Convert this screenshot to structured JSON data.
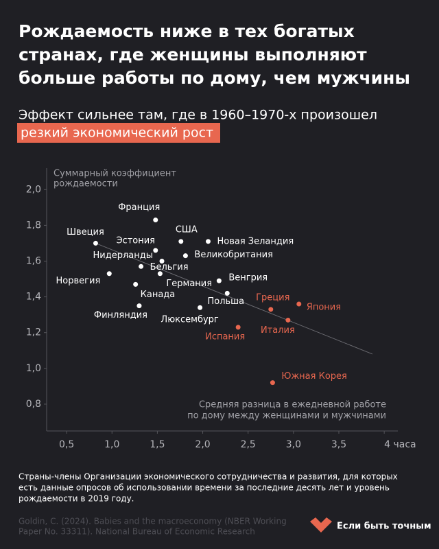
{
  "chart_data": {
    "type": "scatter",
    "title": [
      "Рождаемость ниже в тех богатых",
      "странах, где женщины выполняют",
      "больше работы по дому, чем мужчины"
    ],
    "subtitle": "Эффект сильнее там, где в 1960–1970-х произошел",
    "subtitle_highlight": "резкий экономический рост",
    "y_axis_label": [
      "Суммарный коэффициент",
      "рождаемости"
    ],
    "x_axis_label": [
      "Средняя разница в ежедневной работе",
      "по дому между женщинами и мужчинами"
    ],
    "labels": [
      "Франция",
      "Швеция",
      "Эстония",
      "США",
      "Новая Зеландия",
      "Нидерланды",
      "Великобритания",
      "Бельгия",
      "Норвегия",
      "Германия",
      "Канада",
      "Венгрия",
      "Польша",
      "Финляндия",
      "Люксембург",
      "Греция",
      "Япония",
      "Испания",
      "Италия",
      "Южная Корея"
    ],
    "x": [
      1.48,
      0.82,
      1.48,
      1.76,
      2.06,
      1.55,
      1.81,
      1.32,
      0.97,
      1.53,
      1.26,
      2.18,
      2.27,
      1.3,
      1.97,
      2.75,
      3.06,
      2.39,
      2.94,
      2.77
    ],
    "y": [
      1.83,
      1.7,
      1.66,
      1.71,
      1.71,
      1.6,
      1.63,
      1.57,
      1.53,
      1.53,
      1.47,
      1.49,
      1.42,
      1.35,
      1.34,
      1.33,
      1.36,
      1.23,
      1.27,
      0.92
    ],
    "colors": [
      "#ffffff",
      "#ffffff",
      "#ffffff",
      "#ffffff",
      "#ffffff",
      "#ffffff",
      "#ffffff",
      "#ffffff",
      "#ffffff",
      "#ffffff",
      "#ffffff",
      "#ffffff",
      "#ffffff",
      "#ffffff",
      "#ffffff",
      "#e8674f",
      "#e8674f",
      "#e8674f",
      "#e8674f",
      "#e8674f"
    ],
    "trend_line": {
      "x": [
        0.82,
        3.87
      ],
      "y": [
        1.7,
        1.08
      ],
      "color": "#6a6a70"
    },
    "xlim": [
      0.28,
      4.15
    ],
    "ylim": [
      0.65,
      2.12
    ],
    "xticks": [
      {
        "value": 0.5,
        "label": "0,5"
      },
      {
        "value": 1.0,
        "label": "1,0"
      },
      {
        "value": 1.5,
        "label": "1,5"
      },
      {
        "value": 2.0,
        "label": "2,0"
      },
      {
        "value": 2.5,
        "label": "2,5"
      },
      {
        "value": 3.0,
        "label": "3,0"
      },
      {
        "value": 3.5,
        "label": "3,5"
      },
      {
        "value": 4,
        "label": "4 часа"
      }
    ],
    "yticks": [
      {
        "value": 0.8,
        "label": "0,8"
      },
      {
        "value": 1.0,
        "label": "1,0"
      },
      {
        "value": 1.2,
        "label": "1,2"
      },
      {
        "value": 1.4,
        "label": "1,4"
      },
      {
        "value": 1.6,
        "label": "1,6"
      },
      {
        "value": 1.8,
        "label": "1,8"
      },
      {
        "value": 2.0,
        "label": "2,0"
      }
    ],
    "footnote": [
      "Страны-члены Организации экономического сотрудничества и развития, для которых",
      "есть данные опросов об использовании времени за последние десять лет и уровень",
      "рождаемости в 2019 году."
    ],
    "source": [
      "Goldin, C. (2024). Babies and the macroeconomy (NBER Working",
      "Paper No. 33311). National Bureau of Economic Research"
    ],
    "brand": "Если быть точным"
  }
}
